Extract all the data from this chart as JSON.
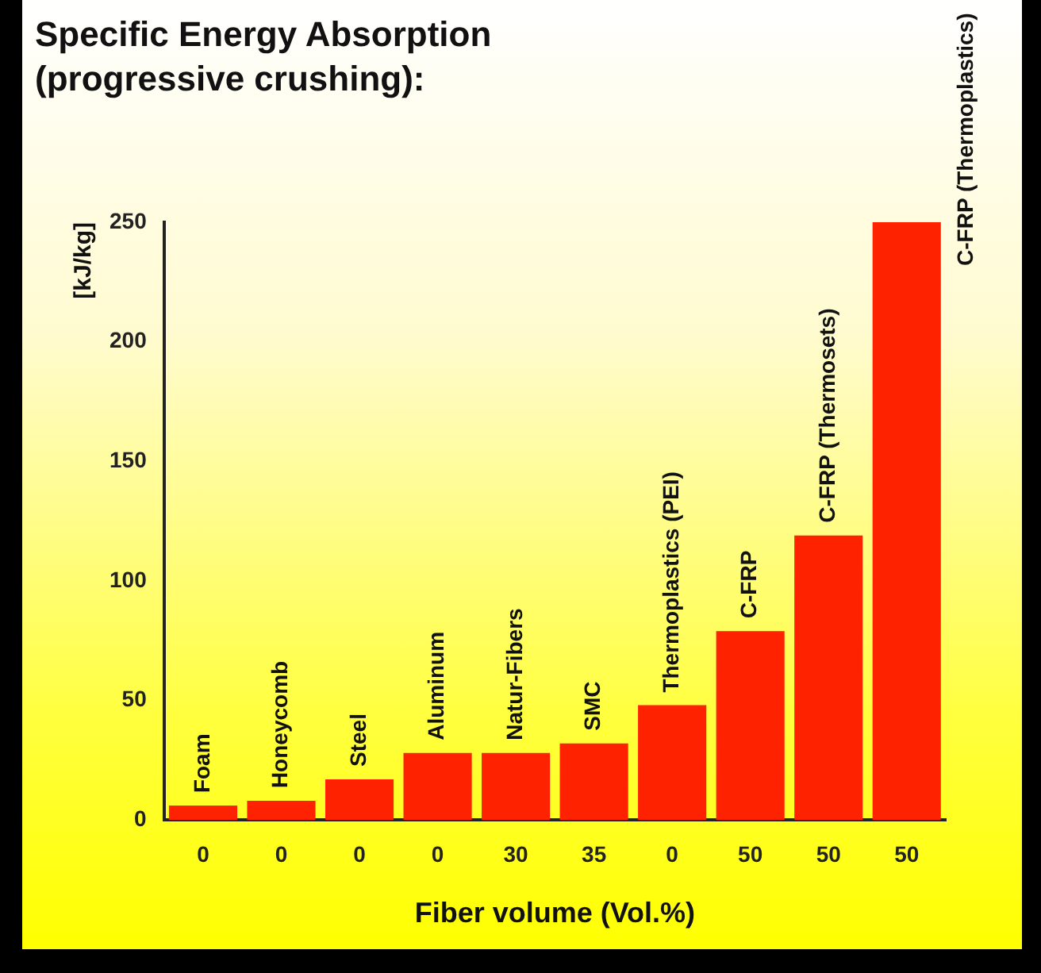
{
  "chart_data": {
    "type": "bar",
    "title": "Specific Energy Absorption (progressive crushing):",
    "xlabel": "Fiber volume (Vol.%)",
    "ylabel": "[kJ/kg]",
    "categories": [
      "0",
      "0",
      "0",
      "0",
      "30",
      "35",
      "0",
      "50",
      "50",
      "50"
    ],
    "values": [
      6,
      8,
      17,
      28,
      28,
      32,
      48,
      79,
      119,
      250
    ],
    "color": "#ff2200",
    "ylim": [
      0,
      250
    ],
    "yticks": [
      0,
      50,
      100,
      150,
      200,
      250
    ],
    "grid": false,
    "legend": false,
    "annotations": [
      "Foam",
      "Honeycomb",
      "Steel",
      "Aluminum",
      "Natur-Fibers",
      "SMC",
      "Thermoplastics (PEI)",
      "C-FRP",
      "C-FRP (Thermosets)",
      "C-FRP (Thermoplastics)"
    ]
  }
}
